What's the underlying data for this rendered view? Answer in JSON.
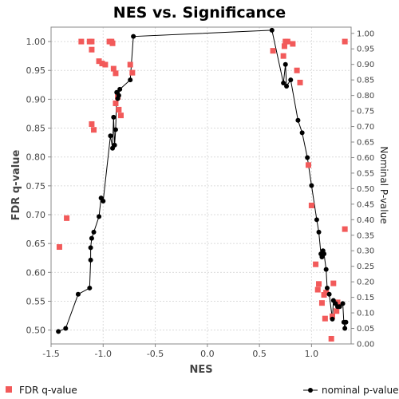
{
  "chart_data": {
    "type": "scatter",
    "title": "NES vs. Significance",
    "xlabel": "NES",
    "ylabel": "FDR q-value",
    "y2label": "Nominal P-value",
    "xlim": [
      -1.5,
      1.38
    ],
    "ylim": [
      0.476,
      1.025
    ],
    "y2lim": [
      0.0,
      1.02
    ],
    "xticks": [
      "-1.5",
      "-1.0",
      "-0.5",
      "0.0",
      "0.5",
      "1.0"
    ],
    "yticks": [
      "0.50",
      "0.55",
      "0.60",
      "0.65",
      "0.70",
      "0.75",
      "0.80",
      "0.85",
      "0.90",
      "0.95",
      "1.00"
    ],
    "y2ticks": [
      "0.00",
      "0.05",
      "0.10",
      "0.15",
      "0.20",
      "0.25",
      "0.30",
      "0.35",
      "0.40",
      "0.45",
      "0.50",
      "0.55",
      "0.60",
      "0.65",
      "0.70",
      "0.75",
      "0.80",
      "0.85",
      "0.90",
      "0.95",
      "1.00"
    ],
    "grid": true,
    "legend_position": "bottom",
    "series": [
      {
        "name": "FDR q-value",
        "axis": "left",
        "style": "square",
        "color": "#f25a5a",
        "points": [
          [
            -1.42,
            0.644
          ],
          [
            -1.35,
            0.694
          ],
          [
            -1.21,
            1.0
          ],
          [
            -1.13,
            1.0
          ],
          [
            -1.11,
            1.0
          ],
          [
            -1.11,
            0.986
          ],
          [
            -1.11,
            0.857
          ],
          [
            -1.09,
            0.847
          ],
          [
            -1.04,
            0.966
          ],
          [
            -1.01,
            0.962
          ],
          [
            -0.98,
            0.96
          ],
          [
            -0.94,
            1.0
          ],
          [
            -0.92,
            1.0
          ],
          [
            -0.91,
            0.997
          ],
          [
            -0.9,
            0.953
          ],
          [
            -0.88,
            0.945
          ],
          [
            -0.88,
            0.893
          ],
          [
            -0.86,
            0.904
          ],
          [
            -0.85,
            0.882
          ],
          [
            -0.83,
            0.872
          ],
          [
            -0.74,
            0.96
          ],
          [
            -0.72,
            0.946
          ],
          [
            0.63,
            0.984
          ],
          [
            0.73,
            0.975
          ],
          [
            0.74,
            0.992
          ],
          [
            0.75,
            1.0
          ],
          [
            0.77,
            1.0
          ],
          [
            0.82,
            0.996
          ],
          [
            0.86,
            0.95
          ],
          [
            0.89,
            0.929
          ],
          [
            0.97,
            0.786
          ],
          [
            1.0,
            0.716
          ],
          [
            1.04,
            0.614
          ],
          [
            1.06,
            0.57
          ],
          [
            1.07,
            0.58
          ],
          [
            1.1,
            0.547
          ],
          [
            1.12,
            0.561
          ],
          [
            1.13,
            0.52
          ],
          [
            1.14,
            0.565
          ],
          [
            1.19,
            0.485
          ],
          [
            1.2,
            0.524
          ],
          [
            1.21,
            0.581
          ],
          [
            1.24,
            0.533
          ],
          [
            1.25,
            0.548
          ],
          [
            1.32,
            1.0
          ],
          [
            1.32,
            0.675
          ]
        ]
      },
      {
        "name": "nominal p-value",
        "axis": "right",
        "style": "line-circle",
        "color": "#000000",
        "points": [
          [
            -1.43,
            0.04
          ],
          [
            -1.36,
            0.05
          ],
          [
            -1.24,
            0.16
          ],
          [
            -1.13,
            0.18
          ],
          [
            -1.12,
            0.27
          ],
          [
            -1.12,
            0.31
          ],
          [
            -1.11,
            0.34
          ],
          [
            -1.09,
            0.36
          ],
          [
            -1.04,
            0.41
          ],
          [
            -1.02,
            0.47
          ],
          [
            -1.0,
            0.46
          ],
          [
            -0.93,
            0.67
          ],
          [
            -0.91,
            0.63
          ],
          [
            -0.9,
            0.73
          ],
          [
            -0.89,
            0.64
          ],
          [
            -0.88,
            0.69
          ],
          [
            -0.87,
            0.81
          ],
          [
            -0.86,
            0.79
          ],
          [
            -0.85,
            0.8
          ],
          [
            -0.84,
            0.82
          ],
          [
            -0.74,
            0.85
          ],
          [
            -0.71,
            0.99
          ],
          [
            0.62,
            1.01
          ],
          [
            0.73,
            0.84
          ],
          [
            0.75,
            0.9
          ],
          [
            0.76,
            0.83
          ],
          [
            0.8,
            0.85
          ],
          [
            0.87,
            0.72
          ],
          [
            0.91,
            0.68
          ],
          [
            0.96,
            0.6
          ],
          [
            1.0,
            0.51
          ],
          [
            1.05,
            0.4
          ],
          [
            1.07,
            0.36
          ],
          [
            1.09,
            0.29
          ],
          [
            1.1,
            0.28
          ],
          [
            1.11,
            0.3
          ],
          [
            1.12,
            0.29
          ],
          [
            1.14,
            0.24
          ],
          [
            1.15,
            0.18
          ],
          [
            1.17,
            0.16
          ],
          [
            1.2,
            0.08
          ],
          [
            1.21,
            0.14
          ],
          [
            1.23,
            0.13
          ],
          [
            1.25,
            0.12
          ],
          [
            1.27,
            0.12
          ],
          [
            1.3,
            0.13
          ],
          [
            1.31,
            0.07
          ],
          [
            1.32,
            0.05
          ],
          [
            1.33,
            0.07
          ]
        ]
      }
    ]
  }
}
